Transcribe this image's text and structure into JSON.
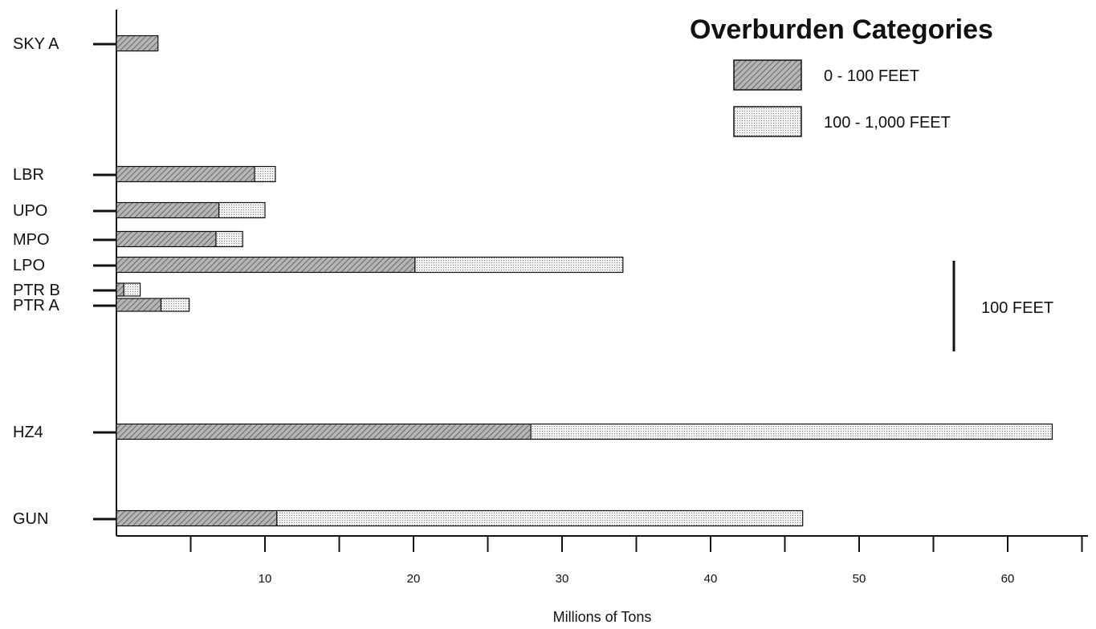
{
  "colors": {
    "ink": "#111111",
    "hatch_fill": "#8f8f8f",
    "dot_fill": "#dcdcdc"
  },
  "chart_data": {
    "type": "bar",
    "orientation": "horizontal",
    "stacked": true,
    "categories": [
      "SKY A",
      "LBR",
      "UPO",
      "MPO",
      "LPO",
      "PTR B",
      "PTR A",
      "HZ4",
      "GUN"
    ],
    "series": [
      {
        "name": "0 - 100 FEET",
        "pattern": "hatched",
        "values": [
          2.8,
          9.3,
          6.9,
          6.7,
          20.1,
          0.5,
          3.0,
          27.9,
          10.8
        ]
      },
      {
        "name": "100 - 1,000 FEET",
        "pattern": "dotted",
        "values": [
          0,
          1.4,
          3.1,
          1.8,
          14.0,
          1.1,
          1.9,
          35.1,
          35.4
        ]
      }
    ],
    "xlabel": "Millions of Tons",
    "xlim": [
      0,
      65
    ],
    "x_ticks": [
      10,
      20,
      30,
      40,
      50,
      60
    ],
    "x_minor_ticks": [
      5,
      15,
      25,
      35,
      45,
      55,
      65
    ],
    "legend": {
      "title": "Overburden Categories",
      "placement": "top-right"
    },
    "vertical_position": {
      "description_scale_bar": "100 FEET",
      "scale_bar_feet": 100
    }
  }
}
